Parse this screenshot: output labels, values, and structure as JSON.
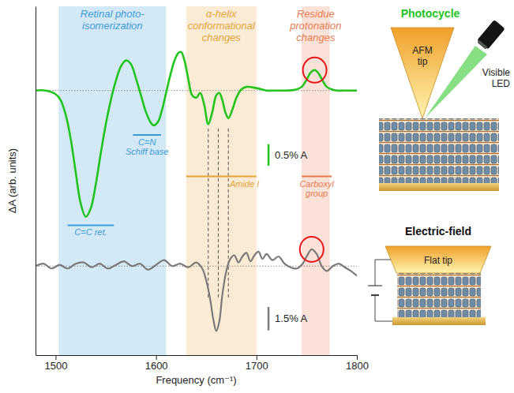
{
  "chart_data": {
    "type": "line",
    "x_label": "Frequency (cm⁻¹)",
    "y_label": "ΔA (arb. units)",
    "xlim": [
      1480,
      1800
    ],
    "xticks": [
      1500,
      1600,
      1700,
      1800
    ],
    "ylim": [
      -11,
      3.5
    ],
    "yticks": [],
    "tick_labels": "x",
    "grid": false,
    "series": [
      {
        "color": "#22c41e",
        "baseline": 0,
        "x": [
          1480,
          1490,
          1500,
          1505,
          1510,
          1515,
          1520,
          1525,
          1530,
          1535,
          1540,
          1545,
          1550,
          1555,
          1560,
          1565,
          1570,
          1575,
          1580,
          1585,
          1590,
          1595,
          1598,
          1602,
          1606,
          1610,
          1614,
          1618,
          1622,
          1625,
          1628,
          1632,
          1636,
          1640,
          1644,
          1648,
          1652,
          1656,
          1660,
          1663,
          1666,
          1669,
          1672,
          1676,
          1680,
          1685,
          1690,
          1700,
          1710,
          1720,
          1730,
          1740,
          1745,
          1750,
          1754,
          1758,
          1762,
          1766,
          1770,
          1775,
          1780,
          1790,
          1800
        ],
        "values": [
          0,
          0,
          -0.15,
          -0.4,
          -1.0,
          -2.0,
          -3.4,
          -4.7,
          -5.25,
          -4.9,
          -3.9,
          -2.6,
          -1.4,
          -0.4,
          0.4,
          1.0,
          1.25,
          1.1,
          0.5,
          -0.2,
          -0.9,
          -1.35,
          -1.45,
          -1.3,
          -0.8,
          -0.1,
          0.6,
          1.2,
          1.55,
          1.6,
          1.3,
          0.5,
          -0.2,
          -0.3,
          -0.1,
          -0.6,
          -1.4,
          -0.9,
          -0.2,
          -0.1,
          -0.4,
          -0.9,
          -1.15,
          -0.8,
          -0.3,
          0.05,
          0.15,
          0.1,
          0,
          0,
          0,
          0.05,
          0.15,
          0.45,
          0.75,
          0.85,
          0.7,
          0.4,
          0.15,
          0.05,
          0,
          0,
          0
        ]
      },
      {
        "color": "#7a7a7a",
        "baseline": -7.3,
        "x": [
          1480,
          1488,
          1496,
          1504,
          1512,
          1520,
          1528,
          1536,
          1544,
          1552,
          1560,
          1568,
          1576,
          1584,
          1592,
          1600,
          1608,
          1616,
          1624,
          1632,
          1640,
          1646,
          1650,
          1654,
          1657,
          1660,
          1663,
          1666,
          1670,
          1674,
          1678,
          1682,
          1686,
          1690,
          1694,
          1698,
          1702,
          1706,
          1710,
          1716,
          1722,
          1728,
          1734,
          1740,
          1746,
          1750,
          1755,
          1760,
          1765,
          1770,
          1776,
          1782,
          1788,
          1794,
          1800
        ],
        "values": [
          -7.3,
          -7.2,
          -7.4,
          -7.25,
          -7.4,
          -7.2,
          -7.15,
          -7.35,
          -7.2,
          -7.4,
          -7.25,
          -7.1,
          -7.3,
          -7.2,
          -7.45,
          -7.25,
          -7.05,
          -7.3,
          -7.2,
          -7.35,
          -7.15,
          -7.4,
          -7.9,
          -8.7,
          -9.5,
          -10.0,
          -9.6,
          -8.5,
          -7.5,
          -7.0,
          -6.85,
          -7.15,
          -6.9,
          -6.75,
          -7.1,
          -6.85,
          -6.7,
          -7.0,
          -6.8,
          -7.05,
          -6.9,
          -7.2,
          -7.35,
          -7.4,
          -7.2,
          -6.9,
          -6.6,
          -6.8,
          -7.3,
          -7.5,
          -7.3,
          -7.2,
          -7.35,
          -7.5,
          -7.7
        ]
      }
    ],
    "regions": [
      {
        "label": [
          "Retinal photo-",
          "isomerization"
        ],
        "x0": 1503,
        "x1": 1610,
        "color": "#3d9bd8"
      },
      {
        "label": [
          "α-helix",
          "conformational",
          "changes"
        ],
        "x0": 1630,
        "x1": 1700,
        "color": "#e3a43a"
      },
      {
        "label": [
          "Residue",
          "protonation",
          "changes"
        ],
        "x0": 1745,
        "x1": 1773,
        "color": "#e87a50"
      }
    ],
    "features": [
      {
        "label": [
          "C=C ret."
        ],
        "x0": 1512,
        "x1": 1558,
        "y": -5.6,
        "color": "#3d9bd8"
      },
      {
        "label": [
          "C=N",
          "Schiff base"
        ],
        "x0": 1577,
        "x1": 1605,
        "y": -1.85,
        "color": "#3d9bd8"
      },
      {
        "label": [
          "Amide I"
        ],
        "x0": 1630,
        "x1": 1700,
        "y": -3.57,
        "label_x": 1688,
        "color": "#e3a43a"
      },
      {
        "label": [
          "Carboxyl",
          "group"
        ],
        "x0": 1745,
        "x1": 1775,
        "y": -3.57,
        "color": "#e87a50"
      }
    ],
    "dashed_lines": {
      "x": [
        1652,
        1662,
        1672
      ],
      "y0": -8.6,
      "y1": -1.5,
      "line_style": "dashed"
    },
    "circles": [
      {
        "x": 1758,
        "y": 0.85,
        "color": "#e8141b"
      },
      {
        "x": 1755,
        "y": -6.6,
        "color": "#e8141b"
      }
    ],
    "scale_bars": [
      {
        "label": "0.5% A",
        "x": 1712,
        "y": -3.13,
        "length": 0.9,
        "color": "#22c41e"
      },
      {
        "label": "1.5% A",
        "x": 1712,
        "y": -9.97,
        "length": 0.97,
        "color": "#7a7a7a"
      }
    ]
  },
  "schematic": {
    "photocycle": {
      "title": "Photocycle",
      "tip": [
        "AFM",
        "tip"
      ],
      "light": [
        "Visible",
        "LED"
      ]
    },
    "electric_field": {
      "title": "Electric-field",
      "tip": "Flat tip"
    }
  }
}
